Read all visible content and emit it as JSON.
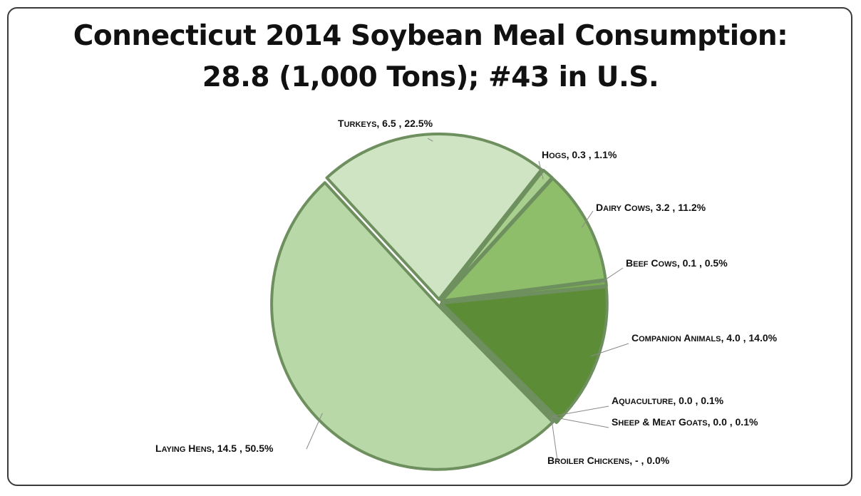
{
  "title_line1": "Connecticut 2014 Soybean Meal Consumption:",
  "title_line2": "28.8 (1,000 Tons); #43 in U.S.",
  "chart_data": {
    "type": "pie",
    "title": "Connecticut 2014 Soybean Meal Consumption: 28.8 (1,000 Tons); #43 in U.S.",
    "units": "1,000 Tons",
    "slices": [
      {
        "name": "Laying Hens",
        "value": 14.5,
        "value_label": "14.5",
        "percent": 50.5,
        "color": "#b9d8a7"
      },
      {
        "name": "Turkeys",
        "value": 6.5,
        "value_label": "6.5",
        "percent": 22.5,
        "color": "#cfe4c3"
      },
      {
        "name": "Hogs",
        "value": 0.3,
        "value_label": "0.3",
        "percent": 1.1,
        "color": "#a9cf8f"
      },
      {
        "name": "Dairy Cows",
        "value": 3.2,
        "value_label": "3.2",
        "percent": 11.2,
        "color": "#8fbe6a"
      },
      {
        "name": "Beef Cows",
        "value": 0.1,
        "value_label": "0.1",
        "percent": 0.5,
        "color": "#7aae52"
      },
      {
        "name": "Companion Animals",
        "value": 4.0,
        "value_label": "4.0",
        "percent": 14.0,
        "color": "#5c8c35"
      },
      {
        "name": "Aquaculture",
        "value": 0.0,
        "value_label": "0.0",
        "percent": 0.1,
        "color": "#4d7a2c"
      },
      {
        "name": "Sheep & Meat Goats",
        "value": 0.0,
        "value_label": "0.0",
        "percent": 0.1,
        "color": "#6f9a4c"
      },
      {
        "name": "Broiler Chickens",
        "value": 0.0,
        "value_label": "-",
        "percent": 0.0,
        "color": "#9fc485"
      }
    ],
    "label_separator": ", ",
    "legend": "none"
  }
}
